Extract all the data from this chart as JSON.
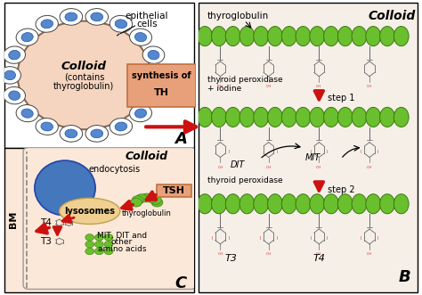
{
  "bg_color": "#ffffff",
  "panel_a_bg": "#ffffff",
  "panel_b_bg": "#f5efe8",
  "panel_c_bg": "#fce8d8",
  "colloid_fill": "#f5d5c0",
  "cell_fill": "#ffffff",
  "nucleus_fill": "#5588cc",
  "green_color": "#6abf2e",
  "green_edge": "#4a8a1a",
  "red_color": "#cc1111",
  "salmon_box": "#e8a07a",
  "salmon_box_edge": "#c07040",
  "blue_oval": "#4477bb",
  "lyso_fill": "#f0d090",
  "lyso_edge": "#c0a050",
  "text_colloid_A": "Colloid",
  "text_contains": "(contains",
  "text_thyroglobulin_paren": "thyroglobulin)",
  "text_epithelial": "epithelial",
  "text_cells": "cells",
  "text_synthesis1": "synthesis of",
  "text_synthesis2": "TH",
  "text_colloid_B": "Colloid",
  "text_thyroglobulin_B": "thyroglobulin",
  "text_peroxidase1a": "thyroid peroxidase",
  "text_peroxidase1b": "+ iodine",
  "text_step1": "step 1",
  "text_MIT": "MIT",
  "text_DIT": "DIT",
  "text_peroxidase2": "thyroid peroxidase",
  "text_step2": "step 2",
  "text_T3_B": "T3",
  "text_T4_B": "T4",
  "text_colloid_C": "Colloid",
  "text_endocytosis": "endocytosis",
  "text_TSH": "TSH",
  "text_thyroglobulin_C": "thyroglobulin",
  "text_lysosomes": "lysosomes",
  "text_T4_C": "T4",
  "text_T3_C": "T3",
  "text_MITDIT": "MIT, DIT and",
  "text_other": "other",
  "text_amino": "amino acids",
  "text_BM": "BM",
  "label_A": "A",
  "label_B": "B",
  "label_C": "C"
}
